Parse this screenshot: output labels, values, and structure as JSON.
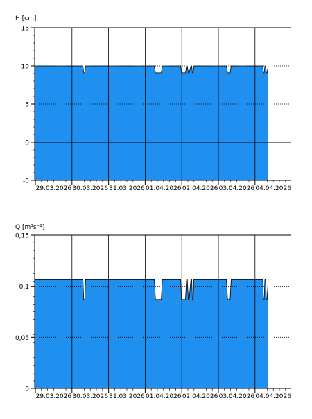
{
  "chart_data": [
    {
      "type": "area",
      "ylabel": "H [cm]",
      "ylim": [
        -5,
        15
      ],
      "y_ticks": [
        -5,
        0,
        5,
        10,
        15
      ],
      "y_tick_labels": [
        "-5",
        "0",
        "5",
        "10",
        "15"
      ],
      "x_day_labels": [
        "29.03.2026",
        "30.03.2026",
        "31.03.2026",
        "01.04.2026",
        "02.04.2026",
        "03.04.2026",
        "04.04.2026"
      ],
      "x_range_days": [
        0,
        7.2
      ],
      "grid": "vertical day lines; dotted horizontal at 5 and 10",
      "fill_color": "#1f8ff0",
      "series": [
        {
          "x_days": [
            0,
            1.3,
            1.32,
            1.35,
            1.37,
            3.25,
            3.28,
            3.32,
            3.4,
            3.44,
            3.47,
            3.97,
            3.99,
            4.02,
            4.1,
            4.13,
            4.15,
            4.18,
            4.2,
            4.25,
            4.27,
            4.29,
            4.31,
            4.33,
            4.36,
            5.22,
            5.25,
            5.32,
            5.35,
            6.21,
            6.23,
            6.25,
            6.27,
            6.29,
            6.31,
            6.33,
            6.36
          ],
          "y": [
            10,
            10,
            9.1,
            9.1,
            10,
            10,
            9.1,
            9.1,
            9.1,
            9.1,
            10,
            10,
            9.1,
            9.1,
            9.1,
            10,
            10,
            9.1,
            9.1,
            10,
            10,
            9.1,
            9.1,
            10,
            10,
            10,
            9.1,
            9.1,
            10,
            10,
            9.1,
            9.1,
            10,
            10,
            9.1,
            9.1,
            10
          ]
        }
      ]
    },
    {
      "type": "area",
      "ylabel": "Q [m³s⁻¹]",
      "ylim": [
        0,
        0.15
      ],
      "y_ticks": [
        0,
        0.05,
        0.1,
        0.15
      ],
      "y_tick_labels": [
        "0",
        "0,05",
        "0,1",
        "0,15"
      ],
      "x_day_labels": [
        "29.03.2026",
        "30.03.2026",
        "31.03.2026",
        "01.04.2026",
        "02.04.2026",
        "03.04.2026",
        "04.04.2026"
      ],
      "x_range_days": [
        0,
        7.2
      ],
      "grid": "vertical day lines; dotted horizontal at 0.05 and 0.1",
      "fill_color": "#1f8ff0",
      "series": [
        {
          "x_days": [
            0,
            1.3,
            1.32,
            1.35,
            1.37,
            3.25,
            3.28,
            3.32,
            3.4,
            3.44,
            3.47,
            3.97,
            3.99,
            4.02,
            4.1,
            4.13,
            4.15,
            4.18,
            4.2,
            4.25,
            4.27,
            4.29,
            4.31,
            4.33,
            4.36,
            5.22,
            5.25,
            5.32,
            5.35,
            6.21,
            6.23,
            6.25,
            6.27,
            6.29,
            6.31,
            6.33,
            6.36
          ],
          "y": [
            0.107,
            0.107,
            0.087,
            0.087,
            0.107,
            0.107,
            0.087,
            0.087,
            0.087,
            0.087,
            0.107,
            0.107,
            0.087,
            0.087,
            0.087,
            0.107,
            0.107,
            0.087,
            0.087,
            0.107,
            0.107,
            0.087,
            0.087,
            0.107,
            0.107,
            0.107,
            0.087,
            0.087,
            0.107,
            0.107,
            0.087,
            0.087,
            0.107,
            0.107,
            0.087,
            0.087,
            0.107
          ]
        }
      ]
    }
  ]
}
